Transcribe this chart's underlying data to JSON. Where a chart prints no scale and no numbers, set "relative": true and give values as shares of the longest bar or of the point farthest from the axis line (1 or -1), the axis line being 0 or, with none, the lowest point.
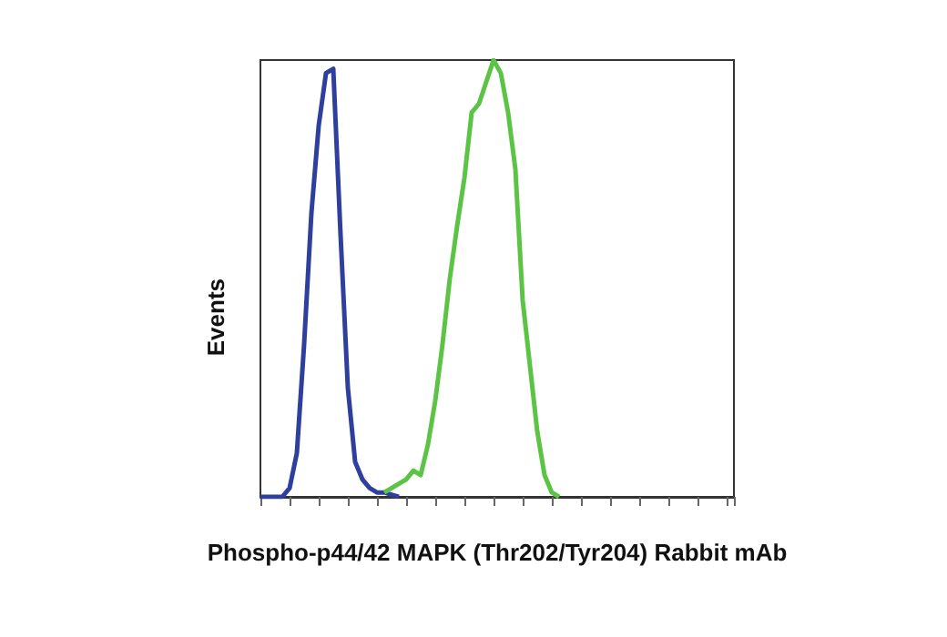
{
  "chart_data": {
    "type": "line",
    "relative": true,
    "ylabel": "Events",
    "xlabel": "Phospho-p44/42 MAPK (Thr202/Tyr204) Rabbit mAb",
    "grid": false,
    "line_style": "solid",
    "categories": [
      null,
      null,
      null,
      null,
      null,
      null,
      null,
      null,
      null,
      null,
      null,
      null,
      null,
      null,
      null,
      null,
      null,
      null,
      null,
      null,
      null,
      null,
      null,
      null,
      null,
      null,
      null,
      null,
      null,
      null,
      null,
      null,
      null,
      null,
      null,
      null,
      null,
      null,
      null,
      null,
      null,
      null,
      null,
      null,
      null,
      null,
      null,
      null,
      null,
      null,
      null,
      null,
      null,
      null,
      null,
      null,
      null,
      null,
      null,
      null,
      null,
      null,
      null,
      null,
      null,
      null
    ],
    "series": [
      {
        "color": "#2e3f9e",
        "values": [
          0,
          0,
          0,
          0,
          0.02,
          0.1,
          0.35,
          0.65,
          0.85,
          0.97,
          0.98,
          0.6,
          0.25,
          0.08,
          0.04,
          0.02,
          0.01,
          0.01,
          0.005,
          0,
          null,
          null,
          null,
          null,
          null,
          null,
          null,
          null,
          null,
          null,
          null,
          null,
          null,
          null,
          null,
          null,
          null,
          null,
          null,
          null,
          null,
          null,
          null,
          null,
          null,
          null,
          null,
          null,
          null,
          null,
          null,
          null,
          null,
          null,
          null,
          null,
          null,
          null,
          null,
          null,
          null,
          null,
          null,
          null,
          null,
          null
        ]
      },
      {
        "color": "#5cc445",
        "values": [
          null,
          null,
          null,
          null,
          null,
          null,
          null,
          null,
          null,
          null,
          null,
          null,
          null,
          null,
          null,
          null,
          null,
          0.01,
          0.02,
          0.03,
          0.04,
          0.06,
          0.05,
          0.12,
          0.22,
          0.35,
          0.5,
          0.62,
          0.73,
          0.88,
          0.9,
          0.95,
          1,
          0.97,
          0.88,
          0.75,
          0.45,
          0.3,
          0.15,
          0.05,
          0.01,
          0,
          null,
          null,
          null,
          null,
          null,
          null,
          null,
          null,
          null,
          null,
          null,
          null,
          null,
          null,
          null,
          null,
          null,
          null,
          null,
          null,
          null,
          null,
          null,
          null
        ]
      }
    ]
  }
}
